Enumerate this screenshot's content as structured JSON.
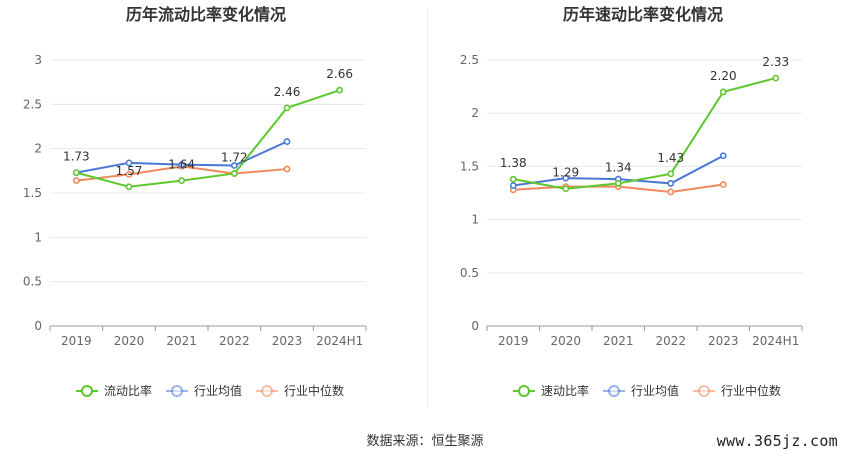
{
  "source_label": "数据来源：恒生聚源",
  "watermark": "www.365jz.com",
  "colors": {
    "company": "#5ec72d",
    "avg": "#4a78d6",
    "median": "#f08a5d"
  },
  "chart_data": [
    {
      "type": "line",
      "title": "历年流动比率变化情况",
      "categories": [
        "2019",
        "2020",
        "2021",
        "2022",
        "2023",
        "2024H1"
      ],
      "ylim": [
        0,
        3
      ],
      "yticks": [
        0,
        0.5,
        1,
        1.5,
        2,
        2.5,
        3
      ],
      "ytick_labels": [
        "0",
        "0.5",
        "1",
        "1.5",
        "2",
        "2.5",
        "3"
      ],
      "grid": true,
      "legend_position": "bottom",
      "series": [
        {
          "name": "流动比率",
          "role": "company",
          "values": [
            1.73,
            1.57,
            1.64,
            1.72,
            2.46,
            2.66
          ],
          "labels": [
            "1.73",
            "1.57",
            "1.64",
            "1.72",
            "2.46",
            "2.66"
          ]
        },
        {
          "name": "行业均值",
          "role": "avg",
          "values": [
            1.73,
            1.84,
            1.82,
            1.81,
            2.08,
            null
          ]
        },
        {
          "name": "行业中位数",
          "role": "median",
          "values": [
            1.64,
            1.71,
            1.8,
            1.72,
            1.77,
            null
          ]
        }
      ]
    },
    {
      "type": "line",
      "title": "历年速动比率变化情况",
      "categories": [
        "2019",
        "2020",
        "2021",
        "2022",
        "2023",
        "2024H1"
      ],
      "ylim": [
        0,
        2.5
      ],
      "yticks": [
        0,
        0.5,
        1,
        1.5,
        2,
        2.5
      ],
      "ytick_labels": [
        "0",
        "0.5",
        "1",
        "1.5",
        "2",
        "2.5"
      ],
      "grid": true,
      "legend_position": "bottom",
      "series": [
        {
          "name": "速动比率",
          "role": "company",
          "values": [
            1.38,
            1.29,
            1.34,
            1.43,
            2.2,
            2.33
          ],
          "labels": [
            "1.38",
            "1.29",
            "1.34",
            "1.43",
            "2.20",
            "2.33"
          ]
        },
        {
          "name": "行业均值",
          "role": "avg",
          "values": [
            1.32,
            1.39,
            1.38,
            1.34,
            1.6,
            null
          ]
        },
        {
          "name": "行业中位数",
          "role": "median",
          "values": [
            1.28,
            1.31,
            1.31,
            1.26,
            1.33,
            null
          ]
        }
      ]
    }
  ]
}
